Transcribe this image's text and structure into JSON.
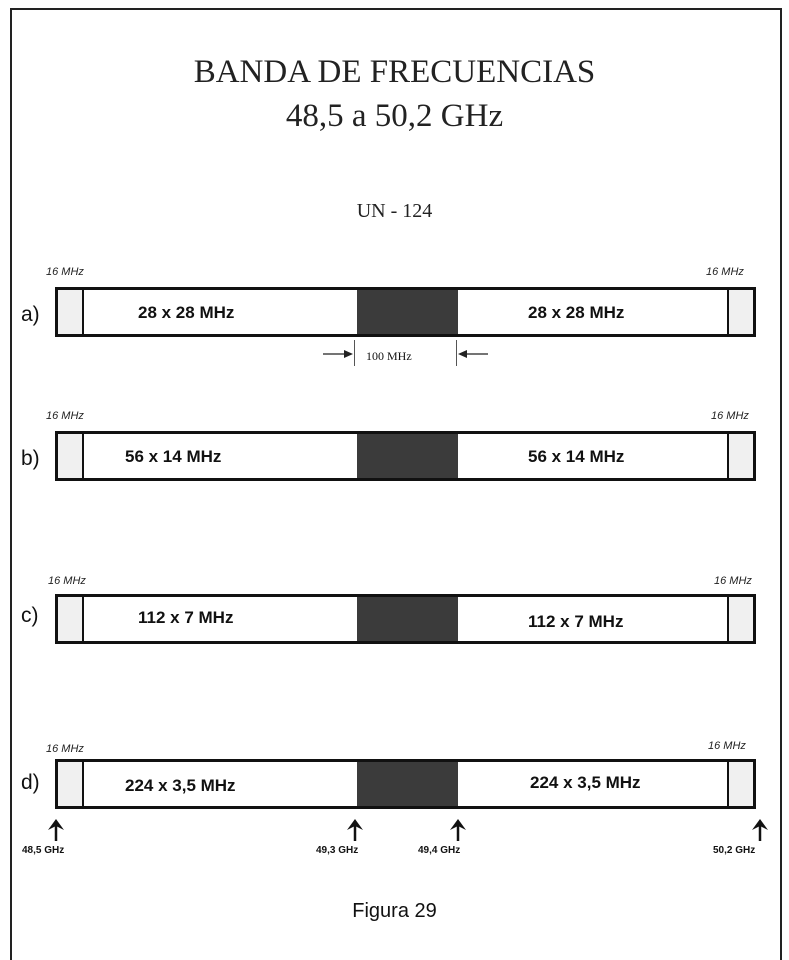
{
  "title_line1": "BANDA DE FRECUENCIAS",
  "title_line2": "48,5  a  50,2  GHz",
  "subtitle": "UN - 124",
  "rows": [
    {
      "label": "a)",
      "guard_left": "16 MHz",
      "guard_right": "16 MHz",
      "left_text": "28 x 28 MHz",
      "right_text": "28 x 28 MHz"
    },
    {
      "label": "b)",
      "guard_left": "16 MHz",
      "guard_right": "16 MHz",
      "left_text": "56 x 14 MHz",
      "right_text": "56 x 14 MHz"
    },
    {
      "label": "c)",
      "guard_left": "16  MHz",
      "guard_right": "16 MHz",
      "left_text": "112 x 7 MHz",
      "right_text": "112 x 7 MHz"
    },
    {
      "label": "d)",
      "guard_left": "16  MHz",
      "guard_right": "16 MHz",
      "left_text": "224 x 3,5 MHz",
      "right_text": "224 x 3,5 MHz"
    }
  ],
  "gap_label": "100 MHz",
  "frequency_markers": [
    "48,5  GHz",
    "49,3  GHz",
    "49,4  GHz",
    "50,2  GHz"
  ],
  "caption": "Figura 29",
  "colors": {
    "center_block": "#3b3b3b",
    "guard_fill": "#f0f0f0",
    "outline": "#111111"
  }
}
